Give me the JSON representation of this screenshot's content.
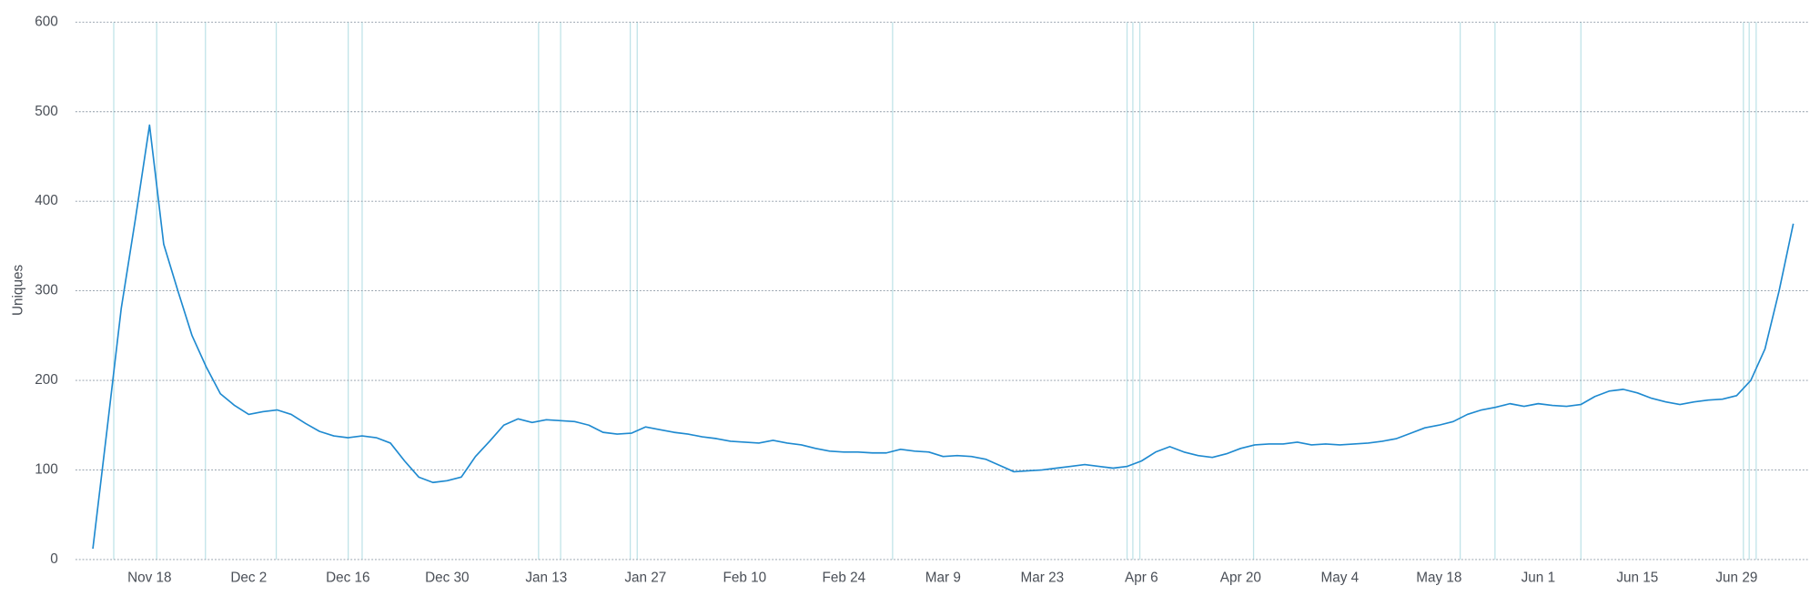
{
  "chart_data": {
    "type": "line",
    "y_label": "Uniques",
    "categories": [
      null,
      null,
      null,
      null,
      "Nov 18",
      null,
      null,
      null,
      null,
      null,
      null,
      "Dec 2",
      null,
      null,
      null,
      null,
      null,
      null,
      "Dec 16",
      null,
      null,
      null,
      null,
      null,
      null,
      "Dec 30",
      null,
      null,
      null,
      null,
      null,
      null,
      "Jan 13",
      null,
      null,
      null,
      null,
      null,
      null,
      "Jan 27",
      null,
      null,
      null,
      null,
      null,
      null,
      "Feb 10",
      null,
      null,
      null,
      null,
      null,
      null,
      "Feb 24",
      null,
      null,
      null,
      null,
      null,
      null,
      "Mar 9",
      null,
      null,
      null,
      null,
      null,
      null,
      "Mar 23",
      null,
      null,
      null,
      null,
      null,
      null,
      "Apr 6",
      null,
      null,
      null,
      null,
      null,
      null,
      "Apr 20",
      null,
      null,
      null,
      null,
      null,
      null,
      "May 4",
      null,
      null,
      null,
      null,
      null,
      null,
      "May 18",
      null,
      null,
      null,
      null,
      null,
      null,
      "Jun 1",
      null,
      null,
      null,
      null,
      null,
      null,
      "Jun 15",
      null,
      null,
      null,
      null,
      null,
      null,
      "Jun 29",
      null,
      null,
      null,
      null
    ],
    "series": [
      {
        "color": "#1f8ad0",
        "values": [
          12,
          145,
          280,
          380,
          485,
          352,
          300,
          250,
          215,
          185,
          172,
          162,
          165,
          167,
          162,
          152,
          143,
          138,
          136,
          138,
          136,
          130,
          110,
          92,
          86,
          88,
          92,
          115,
          132,
          150,
          157,
          153,
          156,
          155,
          154,
          150,
          142,
          140,
          141,
          148,
          145,
          142,
          140,
          137,
          135,
          132,
          131,
          130,
          133,
          130,
          128,
          124,
          121,
          120,
          120,
          119,
          119,
          123,
          121,
          120,
          115,
          116,
          115,
          112,
          105,
          98,
          99,
          100,
          102,
          104,
          106,
          104,
          102,
          104,
          110,
          120,
          126,
          120,
          116,
          114,
          118,
          124,
          128,
          129,
          129,
          131,
          128,
          129,
          128,
          129,
          130,
          132,
          135,
          141,
          147,
          150,
          154,
          162,
          167,
          170,
          174,
          171,
          174,
          172,
          171,
          173,
          182,
          188,
          190,
          186,
          180,
          176,
          173,
          176,
          178,
          179,
          183,
          200,
          235,
          300,
          375
        ]
      }
    ],
    "ylim": [
      0,
      600
    ],
    "yticks": [
      0,
      100,
      200,
      300,
      400,
      500,
      600
    ],
    "grid": true
  }
}
